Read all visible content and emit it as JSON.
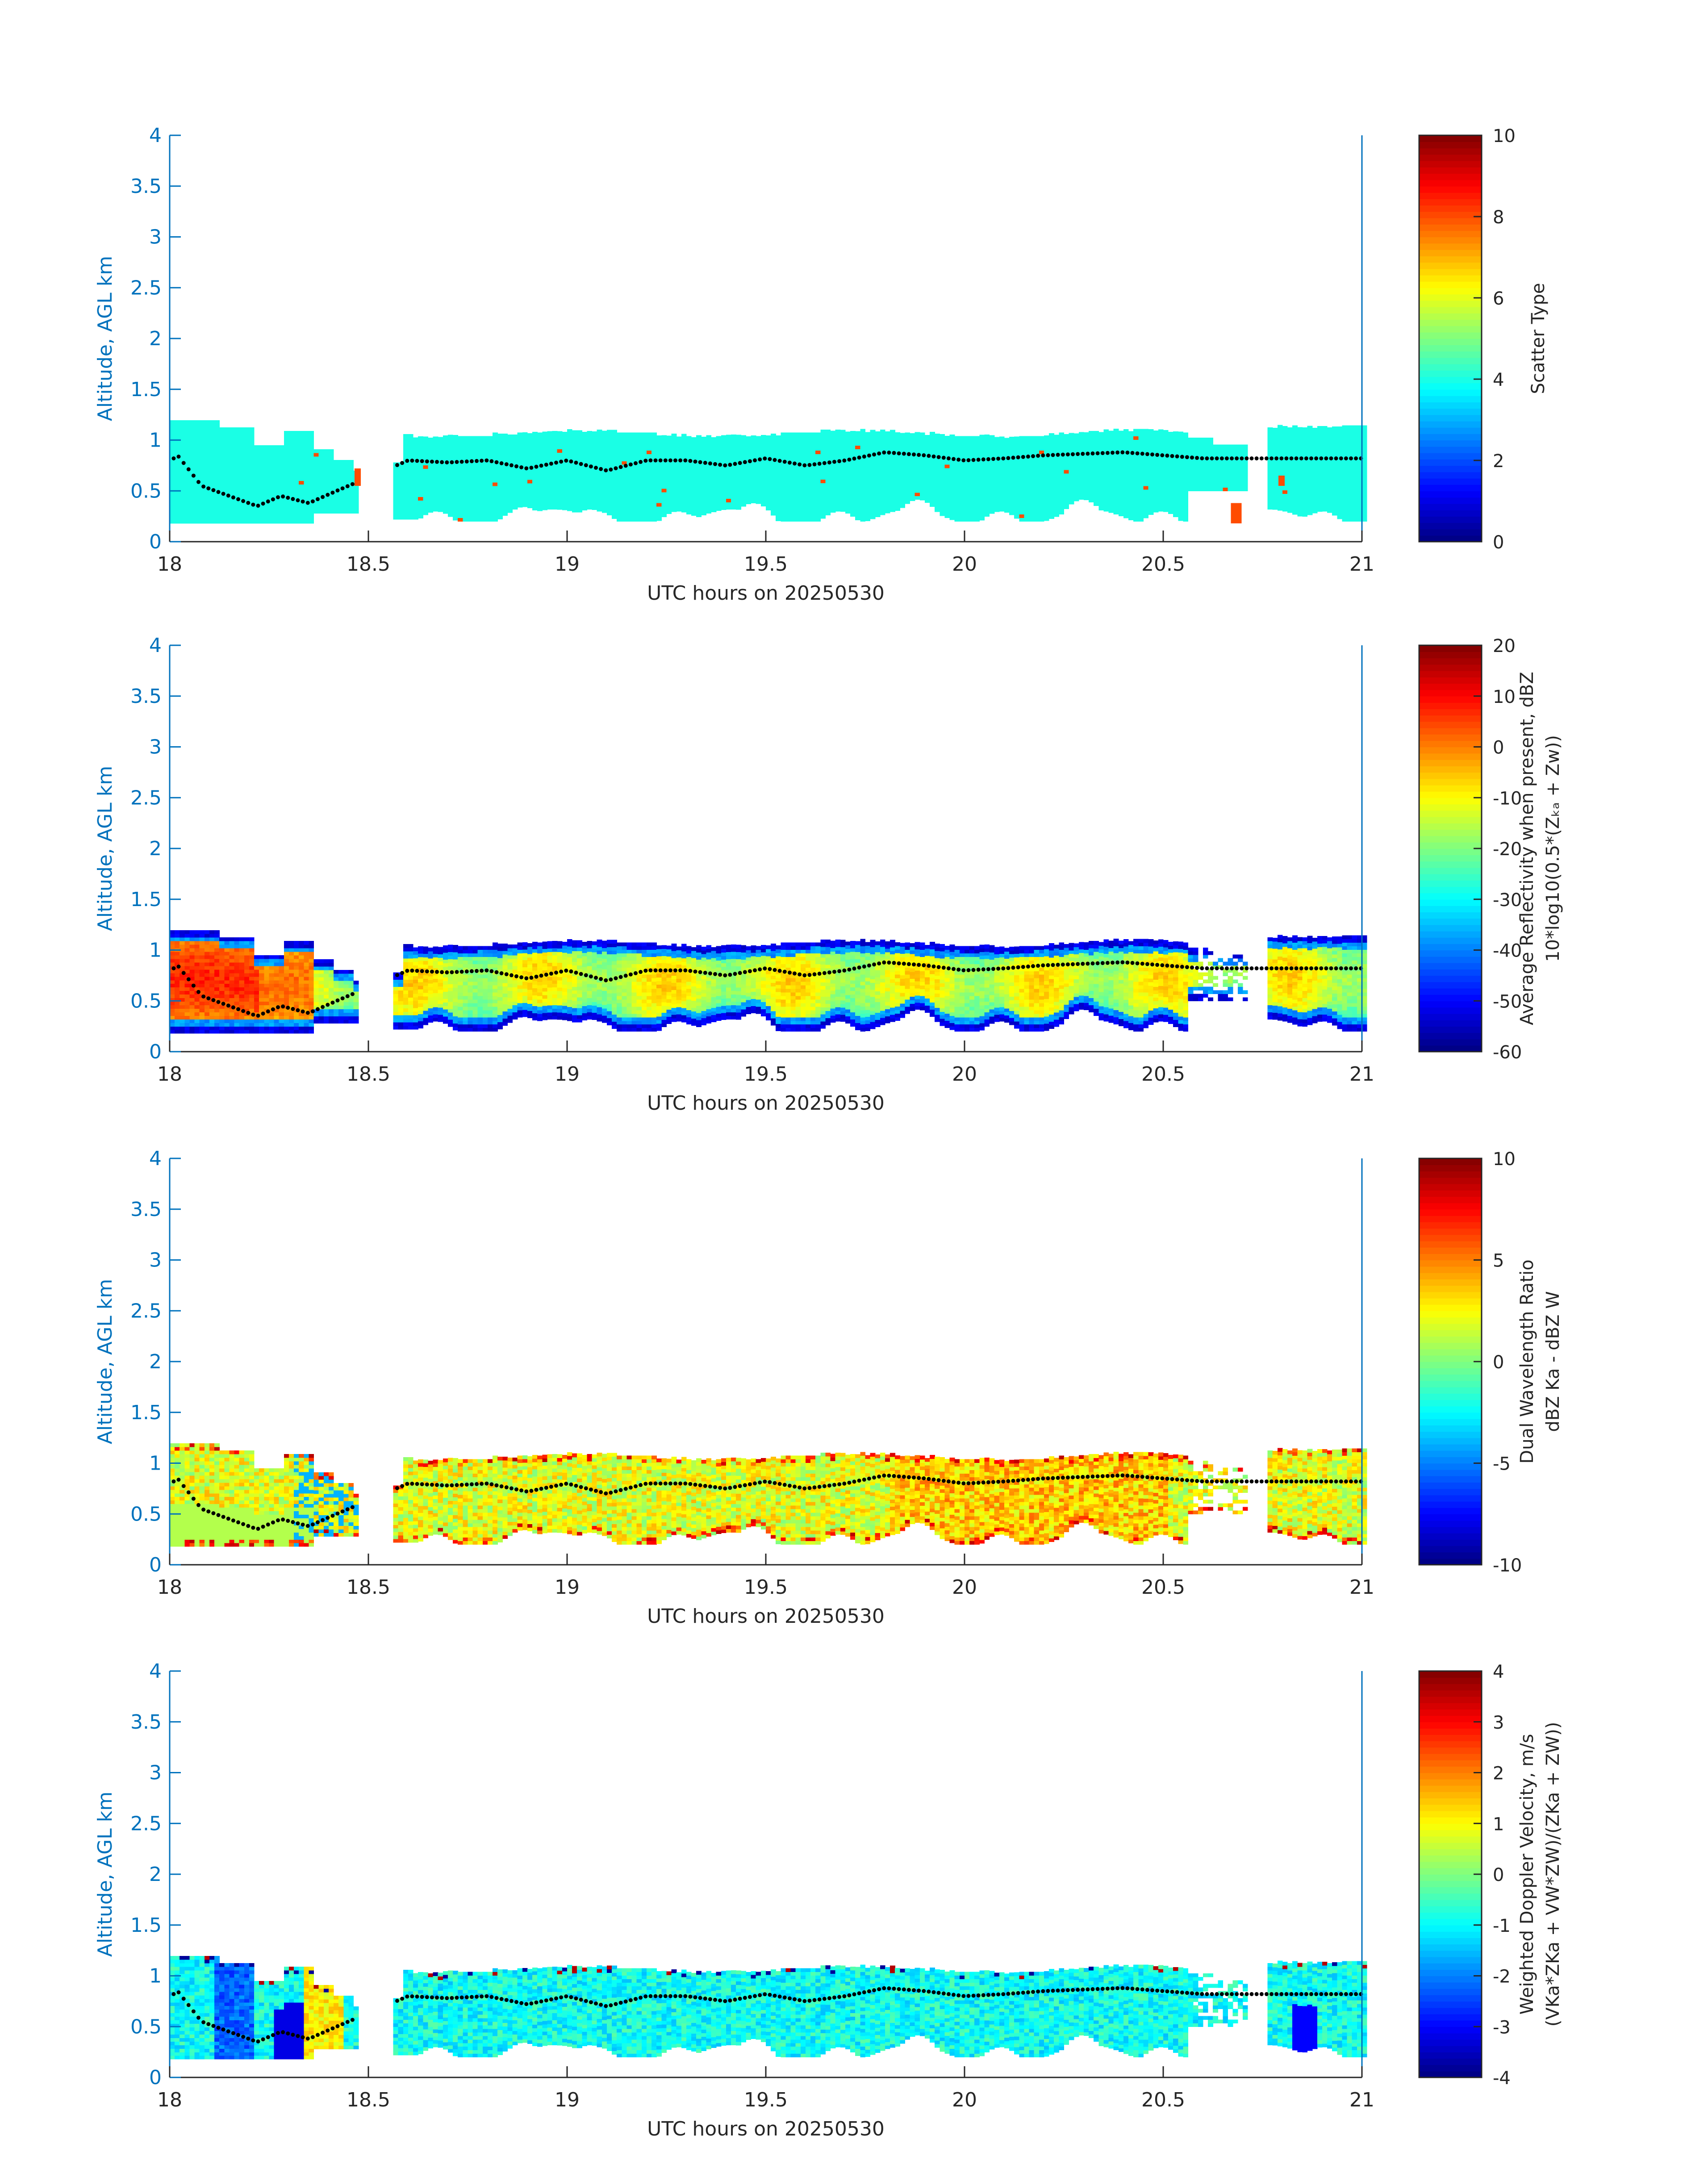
{
  "chart_data": [
    {
      "type": "heatmap",
      "xlabel": "UTC hours on 20250530",
      "ylabel": "Altitude, AGL km",
      "xlim": [
        18,
        21
      ],
      "ylim": [
        0,
        4
      ],
      "xticks": [
        "18",
        "18.5",
        "19",
        "19.5",
        "20",
        "20.5",
        "21"
      ],
      "yticks": [
        "0",
        "0.5",
        "1",
        "1.5",
        "2",
        "2.5",
        "3",
        "3.5",
        "4"
      ],
      "colorbar": {
        "label_lines": [
          "Scatter Type"
        ],
        "clim": [
          0,
          10
        ],
        "ticks": [
          "0",
          "2",
          "4",
          "6",
          "8",
          "10"
        ],
        "colormap": "jet"
      },
      "field": "scatter_type"
    },
    {
      "type": "heatmap",
      "xlabel": "UTC hours on 20250530",
      "ylabel": "Altitude, AGL km",
      "xlim": [
        18,
        21
      ],
      "ylim": [
        0,
        4
      ],
      "xticks": [
        "18",
        "18.5",
        "19",
        "19.5",
        "20",
        "20.5",
        "21"
      ],
      "yticks": [
        "0",
        "0.5",
        "1",
        "1.5",
        "2",
        "2.5",
        "3",
        "3.5",
        "4"
      ],
      "colorbar": {
        "label_lines": [
          "Average Reflectivity when present, dBZ",
          "10*log10(0.5*(Zₖₐ + Zᴡ))"
        ],
        "clim": [
          -60,
          20
        ],
        "ticks": [
          "-60",
          "-50",
          "-40",
          "-30",
          "-20",
          "-10",
          "0",
          "10",
          "20"
        ],
        "colormap": "jet"
      },
      "field": "reflectivity"
    },
    {
      "type": "heatmap",
      "xlabel": "UTC hours on 20250530",
      "ylabel": "Altitude, AGL km",
      "xlim": [
        18,
        21
      ],
      "ylim": [
        0,
        4
      ],
      "xticks": [
        "18",
        "18.5",
        "19",
        "19.5",
        "20",
        "20.5",
        "21"
      ],
      "yticks": [
        "0",
        "0.5",
        "1",
        "1.5",
        "2",
        "2.5",
        "3",
        "3.5",
        "4"
      ],
      "colorbar": {
        "label_lines": [
          "Dual Wavelength Ratio",
          "dBZ Ka - dBZ W"
        ],
        "clim": [
          -10,
          10
        ],
        "ticks": [
          "-10",
          "-5",
          "0",
          "5",
          "10"
        ],
        "colormap": "jet"
      },
      "field": "dwr"
    },
    {
      "type": "heatmap",
      "xlabel": "UTC hours on 20250530",
      "ylabel": "Altitude, AGL km",
      "xlim": [
        18,
        21
      ],
      "ylim": [
        0,
        4
      ],
      "xticks": [
        "18",
        "18.5",
        "19",
        "19.5",
        "20",
        "20.5",
        "21"
      ],
      "yticks": [
        "0",
        "0.5",
        "1",
        "1.5",
        "2",
        "2.5",
        "3",
        "3.5",
        "4"
      ],
      "colorbar": {
        "label_lines": [
          "Weighted Doppler Velocity, m/s",
          "(VKa*ZKa + VW*ZW)/(ZKa + ZW))"
        ],
        "clim": [
          -4,
          4
        ],
        "ticks": [
          "-4",
          "-3",
          "-2",
          "-1",
          "0",
          "1",
          "2",
          "3",
          "4"
        ],
        "colormap": "jet"
      },
      "field": "velocity"
    }
  ],
  "cloud_layer": {
    "gap_hours": [
      18.47,
      18.56
    ],
    "top_km_approx": [
      1.15,
      1.1
    ],
    "base_km": 0.2,
    "marker_altitude_km": [
      0.85,
      0.55,
      0.45,
      0.35,
      0.45,
      0.38,
      0.5,
      0.8,
      0.78,
      0.8,
      0.72,
      0.8,
      0.7,
      0.8,
      0.8,
      0.75,
      0.82,
      0.75,
      0.8,
      0.88,
      0.85,
      0.8,
      0.82,
      0.85,
      0.88,
      0.85,
      0.82,
      0.82
    ],
    "marker_hours": [
      18.02,
      18.08,
      18.15,
      18.22,
      18.28,
      18.35,
      18.42,
      18.6,
      18.7,
      18.8,
      18.9,
      19.0,
      19.1,
      19.2,
      19.3,
      19.4,
      19.5,
      19.6,
      19.7,
      19.8,
      19.9,
      20.0,
      20.1,
      20.2,
      20.4,
      20.5,
      20.6,
      20.9
    ]
  }
}
